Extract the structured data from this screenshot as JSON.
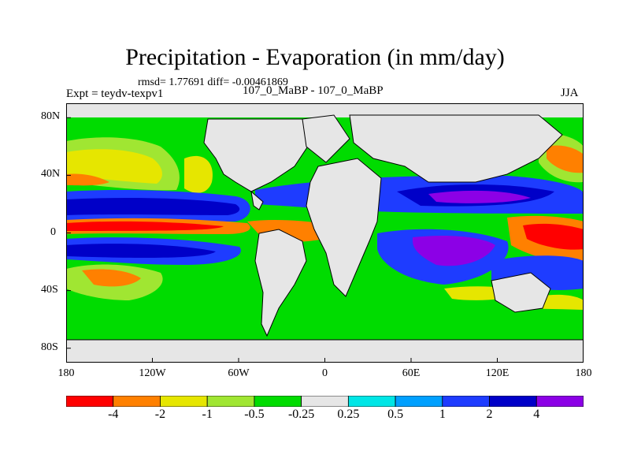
{
  "title": "Precipitation - Evaporation (in mm/day)",
  "stats": "rmsd= 1.77691 diff= -0.00461869",
  "experiment": "Expt = teydv-texpv1",
  "comparison": "107_0_MaBP - 107_0_MaBP",
  "season": "JJA",
  "lat_ticks": [
    {
      "label": "80N",
      "lat": 80
    },
    {
      "label": "40N",
      "lat": 40
    },
    {
      "label": "0",
      "lat": 0
    },
    {
      "label": "40S",
      "lat": -40
    },
    {
      "label": "80S",
      "lat": -80
    }
  ],
  "lon_ticks": [
    {
      "label": "180",
      "lon": -180
    },
    {
      "label": "120W",
      "lon": -120
    },
    {
      "label": "60W",
      "lon": -60
    },
    {
      "label": "0",
      "lon": 0
    },
    {
      "label": "60E",
      "lon": 60
    },
    {
      "label": "120E",
      "lon": 120
    },
    {
      "label": "180",
      "lon": 180
    }
  ],
  "colorbar": {
    "colors": [
      "#ff0000",
      "#ff8000",
      "#e6e600",
      "#a0e632",
      "#00dc00",
      "#e6e6e6",
      "#00e6e6",
      "#00a0ff",
      "#1e3cff",
      "#0000c8",
      "#8c00e6"
    ],
    "labels": [
      "-4",
      "-2",
      "-1",
      "-0.5",
      "-0.25",
      "0.25",
      "0.5",
      "1",
      "2",
      "4"
    ]
  },
  "colors": {
    "land": "#e6e6e6",
    "coastline": "#000000"
  }
}
